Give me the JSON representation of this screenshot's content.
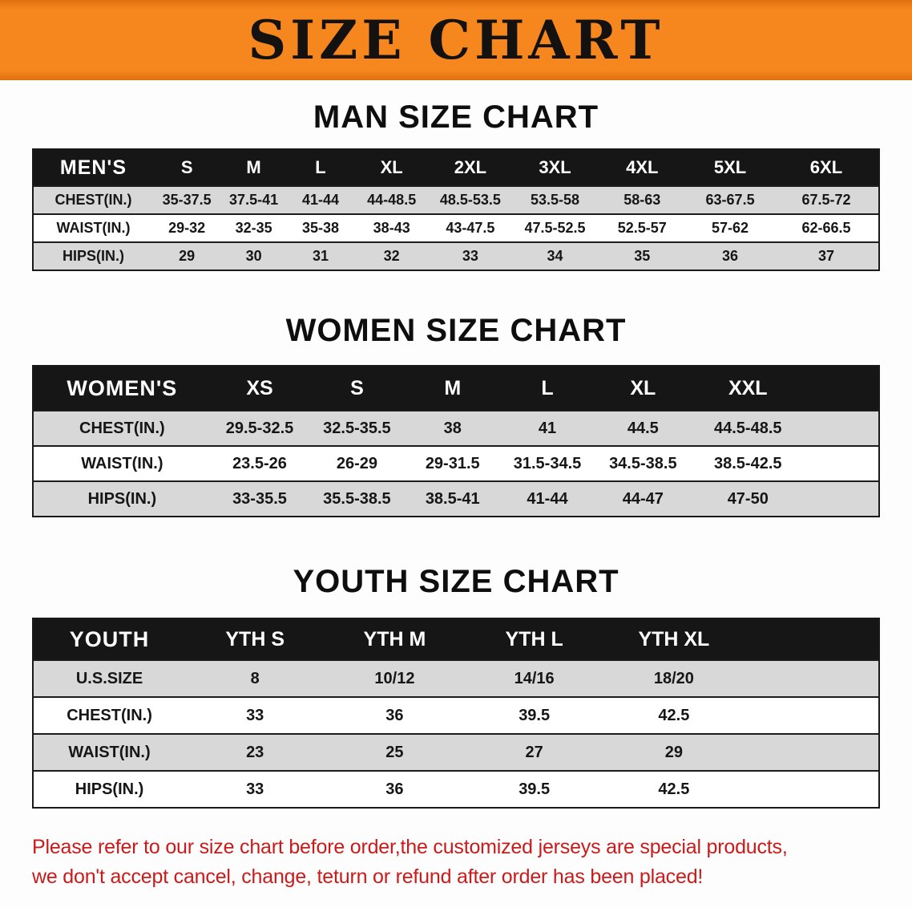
{
  "banner": {
    "title": "SIZE CHART"
  },
  "men": {
    "heading": "MAN SIZE CHART",
    "table": {
      "header": [
        "MEN'S",
        "S",
        "M",
        "L",
        "XL",
        "2XL",
        "3XL",
        "4XL",
        "5XL",
        "6XL"
      ],
      "rows": [
        [
          "CHEST(IN.)",
          "35-37.5",
          "37.5-41",
          "41-44",
          "44-48.5",
          "48.5-53.5",
          "53.5-58",
          "58-63",
          "63-67.5",
          "67.5-72"
        ],
        [
          "WAIST(IN.)",
          "29-32",
          "32-35",
          "35-38",
          "38-43",
          "43-47.5",
          "47.5-52.5",
          "52.5-57",
          "57-62",
          "62-66.5"
        ],
        [
          "HIPS(IN.)",
          "29",
          "30",
          "31",
          "32",
          "33",
          "34",
          "35",
          "36",
          "37"
        ]
      ]
    }
  },
  "women": {
    "heading": "WOMEN SIZE CHART",
    "table": {
      "header": [
        "WOMEN'S",
        "XS",
        "S",
        "M",
        "L",
        "XL",
        "XXL"
      ],
      "rows": [
        [
          "CHEST(IN.)",
          "29.5-32.5",
          "32.5-35.5",
          "38",
          "41",
          "44.5",
          "44.5-48.5"
        ],
        [
          "WAIST(IN.)",
          "23.5-26",
          "26-29",
          "29-31.5",
          "31.5-34.5",
          "34.5-38.5",
          "38.5-42.5"
        ],
        [
          "HIPS(IN.)",
          "33-35.5",
          "35.5-38.5",
          "38.5-41",
          "41-44",
          "44-47",
          "47-50"
        ]
      ]
    }
  },
  "youth": {
    "heading": "YOUTH SIZE CHART",
    "table": {
      "header": [
        "YOUTH",
        "YTH S",
        "YTH M",
        "YTH L",
        "YTH XL"
      ],
      "rows": [
        [
          "U.S.SIZE",
          "8",
          "10/12",
          "14/16",
          "18/20"
        ],
        [
          "CHEST(IN.)",
          "33",
          "36",
          "39.5",
          "42.5"
        ],
        [
          "WAIST(IN.)",
          "23",
          "25",
          "27",
          "29"
        ],
        [
          "HIPS(IN.)",
          "33",
          "36",
          "39.5",
          "42.5"
        ]
      ]
    }
  },
  "note": {
    "line1": "Please refer to our size chart before order,the customized jerseys are special products,",
    "line2": "we don't accept cancel, change, teturn or refund after order has been placed!"
  },
  "colors": {
    "banner_bg": "#f6861e",
    "table_header_bg": "#161616",
    "row_shade": "#d8d8d8",
    "note_red": "#cc1a1a"
  }
}
